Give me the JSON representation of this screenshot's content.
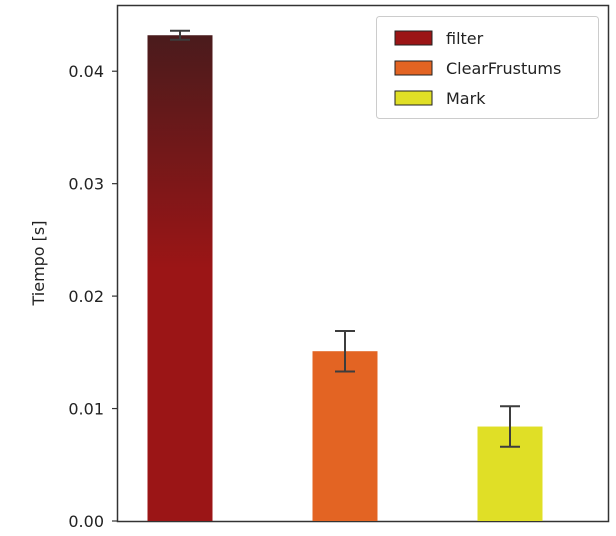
{
  "chart_data": {
    "type": "bar",
    "title": "",
    "xlabel": "",
    "ylabel": "Tiempo [s]",
    "ylim": [
      0,
      0.0458
    ],
    "yticks": [
      "0.00",
      "0.01",
      "0.02",
      "0.03",
      "0.04"
    ],
    "grid": false,
    "legend_position": "top-right",
    "series": [
      {
        "name": "filter",
        "value": 0.0432,
        "error": 0.0004,
        "color": "#9b1516",
        "color_top": "#4a1b1c",
        "gradient": true
      },
      {
        "name": "ClearFrustums",
        "value": 0.0151,
        "error": 0.0018,
        "color": "#e36423"
      },
      {
        "name": "Mark",
        "value": 0.0084,
        "error": 0.0018,
        "color": "#e0df26"
      }
    ]
  }
}
